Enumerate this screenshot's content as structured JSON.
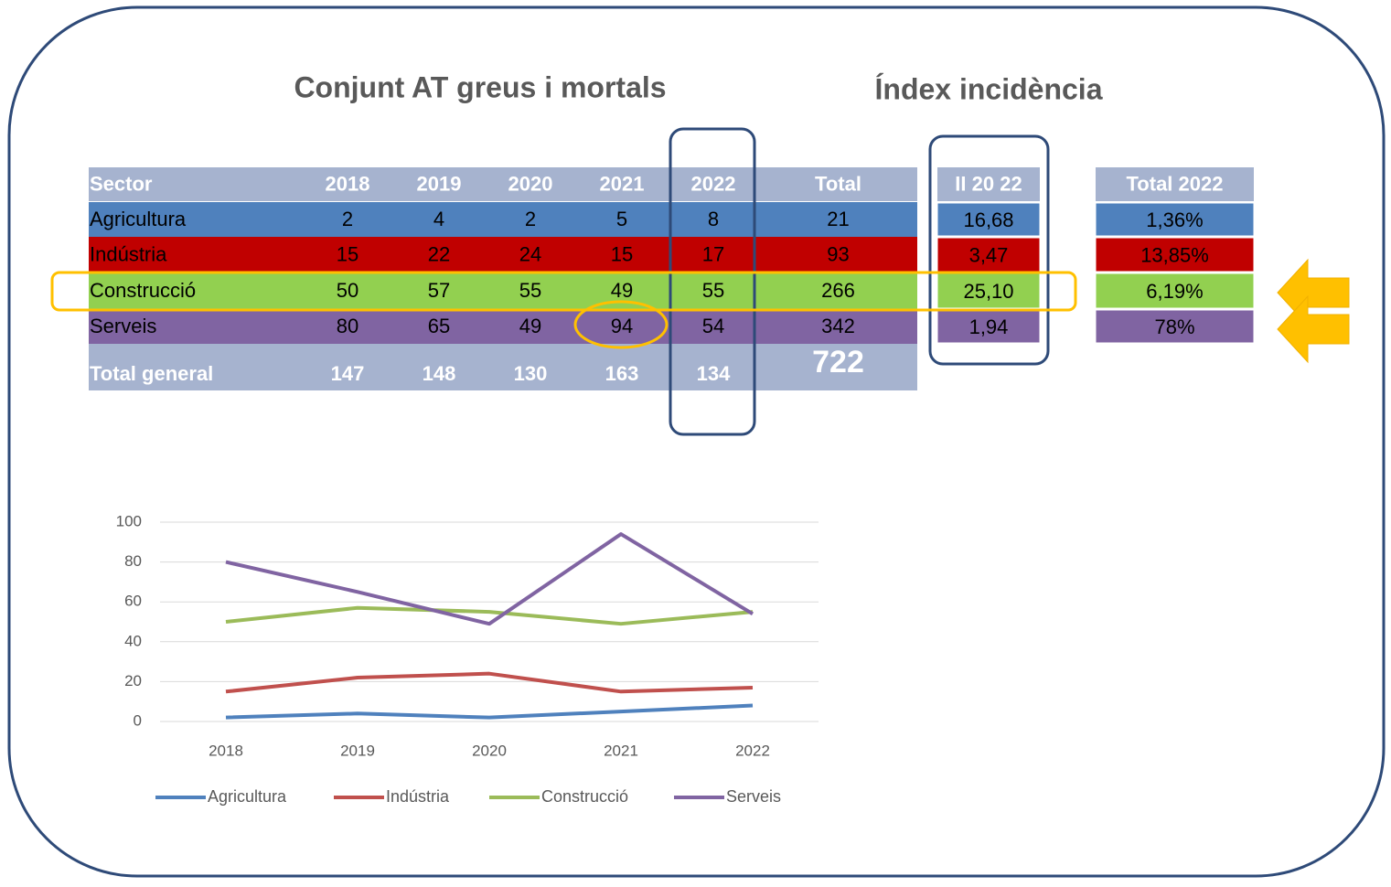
{
  "titles": [
    "Conjunt AT greus i  mortals",
    "Índex incidència"
  ],
  "table": {
    "header": [
      "Sector",
      "2018",
      "2019",
      "2020",
      "2021",
      "2022",
      "Total"
    ],
    "rows": [
      [
        "Agricultura",
        2,
        4,
        2,
        5,
        8,
        21
      ],
      [
        "Indústria",
        15,
        22,
        24,
        15,
        17,
        93
      ],
      [
        "Construcció",
        50,
        57,
        55,
        49,
        55,
        266
      ],
      [
        "Serveis",
        80,
        65,
        49,
        94,
        54,
        342
      ]
    ],
    "total": [
      "Total general",
      147,
      148,
      130,
      163,
      134,
      722
    ]
  },
  "index_table": {
    "header": "II 20 22",
    "values": [
      "16,68",
      "3,47",
      "25,10",
      "1,94"
    ]
  },
  "share_table": {
    "header": "Total 2022",
    "values": [
      "1,36%",
      "13,85%",
      "6,19%",
      "78%"
    ]
  },
  "chart_data": {
    "type": "line",
    "categories": [
      "2018",
      "2019",
      "2020",
      "2021",
      "2022"
    ],
    "series": [
      {
        "name": "Agricultura",
        "color": "#4f81bd",
        "values": [
          2,
          4,
          2,
          5,
          8
        ]
      },
      {
        "name": "Indústria",
        "color": "#c0504d",
        "values": [
          15,
          22,
          24,
          15,
          17
        ]
      },
      {
        "name": "Construcció",
        "color": "#9bbb59",
        "values": [
          50,
          57,
          55,
          49,
          55
        ]
      },
      {
        "name": "Serveis",
        "color": "#8064a2",
        "values": [
          80,
          65,
          49,
          94,
          54
        ]
      }
    ],
    "ylim": [
      0,
      100
    ],
    "yticks": [
      0,
      20,
      40,
      60,
      80,
      100
    ],
    "grid": true,
    "legend": "bottom"
  }
}
